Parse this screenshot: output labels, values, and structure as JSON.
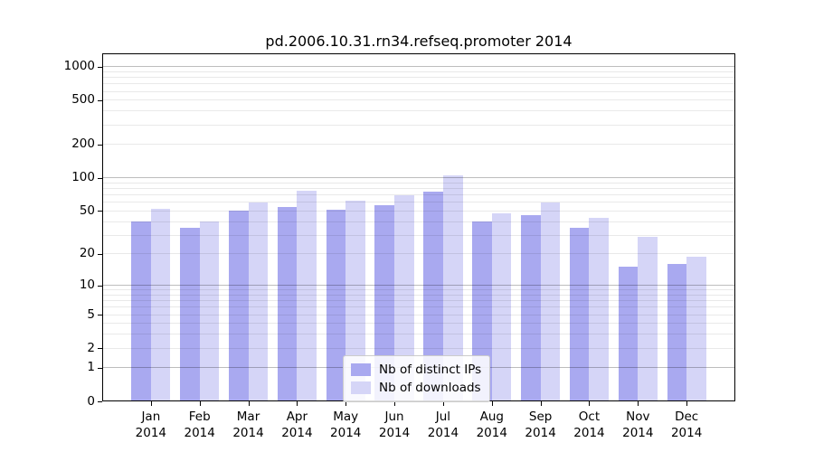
{
  "figure_title": "pd.2006.10.31.rn34.refseq.promoter 2014",
  "chart_data": {
    "type": "bar",
    "title": "pd.2006.10.31.rn34.refseq.promoter 2014",
    "categories": [
      "Jan 2014",
      "Feb 2014",
      "Mar 2014",
      "Apr 2014",
      "May 2014",
      "Jun 2014",
      "Jul 2014",
      "Aug 2014",
      "Sep 2014",
      "Oct 2014",
      "Nov 2014",
      "Dec 2014"
    ],
    "series": [
      {
        "name": "Nb of distinct IPs",
        "color": "#a9a9f0",
        "values": [
          40,
          35,
          50,
          54,
          51,
          56,
          75,
          40,
          46,
          35,
          15,
          16
        ]
      },
      {
        "name": "Nb of downloads",
        "color": "#d5d5f7",
        "values": [
          52,
          40,
          60,
          76,
          62,
          70,
          105,
          48,
          60,
          43,
          29,
          19
        ]
      }
    ],
    "xlabel": "",
    "ylabel": "",
    "yscale": "log1p",
    "ytick_values": [
      0,
      1,
      2,
      5,
      10,
      20,
      50,
      100,
      200,
      500,
      1000
    ],
    "ylim": [
      0,
      1300
    ],
    "grid": true,
    "legend_position": "lower center",
    "background_color": "#ffffff"
  }
}
